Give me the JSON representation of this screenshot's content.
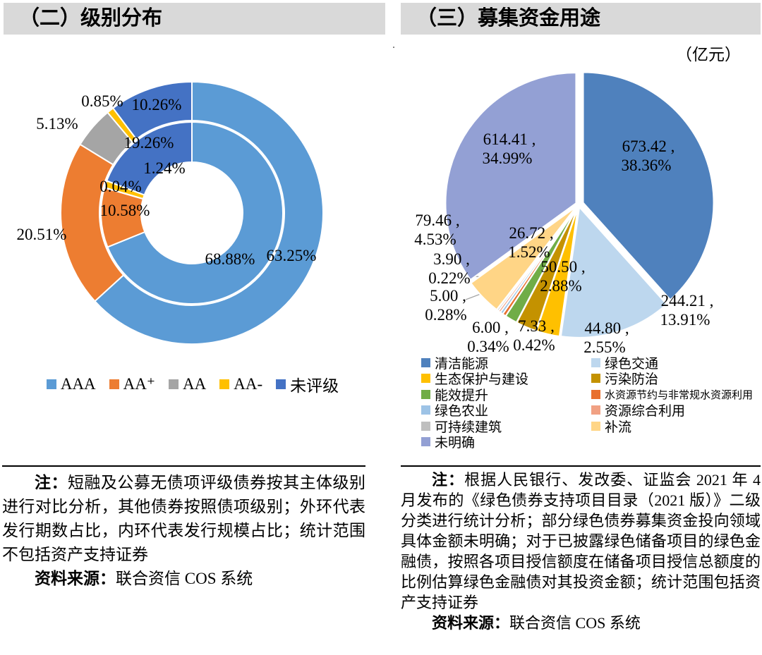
{
  "left_panel": {
    "title": "（二）级别分布",
    "legend": [
      {
        "label": "AAA",
        "color": "#5B9BD5"
      },
      {
        "label": "AA⁺",
        "color": "#ED7D31"
      },
      {
        "label": "AA",
        "color": "#A5A5A5"
      },
      {
        "label": "AA-",
        "color": "#FFC000"
      },
      {
        "label": "未评级",
        "color": "#4472C4"
      }
    ],
    "note": {
      "label": "注：",
      "text": "短融及公募无债项评级债券按其主体级别进行对比分析，其他债券按照债项级别；外环代表发行期数占比，内环代表发行规模占比；统计范围不包括资产支持证券",
      "source_label": "资料来源：",
      "source": "联合资信 COS 系统"
    }
  },
  "right_panel": {
    "title": "（三）募集资金用途",
    "unit_label": "（亿元）",
    "stray_mark": ".",
    "legend_columns": [
      [
        {
          "label": "清洁能源",
          "color": "#4F81BD"
        },
        {
          "label": "生态保护与建设",
          "color": "#FFC000"
        },
        {
          "label": "能效提升",
          "color": "#70AD47"
        },
        {
          "label": "绿色农业",
          "color": "#9DC3E6"
        },
        {
          "label": "可持续建筑",
          "color": "#BFBFBF"
        },
        {
          "label": "未明确",
          "color": "#93A0D4"
        }
      ],
      [
        {
          "label": "绿色交通",
          "color": "#BDD7EE"
        },
        {
          "label": "污染防治",
          "color": "#C49200"
        },
        {
          "label": "水资源节约与非常规水资源利用",
          "color": "#E8702E"
        },
        {
          "label": "资源综合利用",
          "color": "#F1A183"
        },
        {
          "label": "补流",
          "color": "#FFD586"
        }
      ]
    ],
    "note": {
      "label": "注：",
      "text": "根据人民银行、发改委、证监会 2021 年 4 月发布的《绿色债券支持项目目录（2021 版）》二级分类进行统计分析；部分绿色债券募集资金投向领域具体金额未明确；对于已披露绿色储备项目的绿色金融债，按照各项目授信额度在储备项目授信总额度的比例估算绿色金融债对其投资金额；统计范围包括资产支持证券",
      "source_label": "资料来源：",
      "source": "联合资信 COS 系统"
    }
  },
  "chart_data": [
    {
      "type": "donut",
      "title": "（二）级别分布",
      "categories": [
        "AAA",
        "AA+",
        "AA",
        "AA-",
        "未评级"
      ],
      "colors": [
        "#5B9BD5",
        "#ED7D31",
        "#A5A5A5",
        "#FFC000",
        "#4472C4"
      ],
      "series": [
        {
          "name": "外环：发行期数占比",
          "values": [
            63.25,
            20.51,
            5.13,
            0.85,
            10.26
          ]
        },
        {
          "name": "内环：发行规模占比",
          "values": [
            68.88,
            10.58,
            0.04,
            1.24,
            19.26
          ]
        }
      ],
      "label_format": "percent",
      "legend_position": "bottom"
    },
    {
      "type": "pie",
      "title": "（三）募集资金用途",
      "unit": "亿元",
      "categories": [
        "清洁能源",
        "绿色交通",
        "生态保护与建设",
        "污染防治",
        "能效提升",
        "水资源节约与非常规水资源利用",
        "绿色农业",
        "资源综合利用",
        "可持续建筑",
        "补流",
        "未明确"
      ],
      "values": [
        673.42,
        244.21,
        50.5,
        44.8,
        26.72,
        7.33,
        6.0,
        5.0,
        3.9,
        79.46,
        614.41
      ],
      "percents": [
        38.36,
        13.91,
        2.88,
        2.55,
        1.52,
        0.42,
        0.34,
        0.28,
        0.22,
        4.53,
        34.99
      ],
      "colors": [
        "#4F81BD",
        "#BDD7EE",
        "#FFC000",
        "#C49200",
        "#70AD47",
        "#E8702E",
        "#9DC3E6",
        "#F1A183",
        "#BFBFBF",
        "#FFD586",
        "#93A0D4"
      ],
      "legend_position": "bottom"
    }
  ]
}
